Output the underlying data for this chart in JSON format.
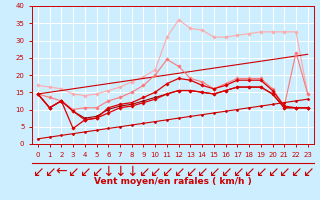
{
  "background_color": "#cceeff",
  "grid_color": "#ffffff",
  "xlabel": "Vent moyen/en rafales ( km/h )",
  "xlim": [
    -0.5,
    23.5
  ],
  "ylim": [
    0,
    40
  ],
  "yticks": [
    0,
    5,
    10,
    15,
    20,
    25,
    30,
    35,
    40
  ],
  "xticks": [
    0,
    1,
    2,
    3,
    4,
    5,
    6,
    7,
    8,
    9,
    10,
    11,
    12,
    13,
    14,
    15,
    16,
    17,
    18,
    19,
    20,
    21,
    22,
    23
  ],
  "series": [
    {
      "x": [
        0,
        1,
        2,
        3,
        4,
        5,
        6,
        7,
        8,
        9,
        10,
        11,
        12,
        13,
        14,
        15,
        16,
        17,
        18,
        19,
        20,
        21,
        22,
        23
      ],
      "y": [
        17.0,
        16.5,
        16.0,
        14.5,
        14.0,
        14.5,
        15.5,
        16.5,
        18.0,
        19.5,
        21.5,
        31.0,
        36.0,
        33.5,
        33.0,
        31.0,
        31.0,
        31.5,
        32.0,
        32.5,
        32.5,
        32.5,
        32.5,
        14.5
      ],
      "color": "#ffaaaa",
      "marker": "D",
      "markersize": 1.8,
      "linewidth": 0.8,
      "zorder": 2
    },
    {
      "x": [
        0,
        1,
        2,
        3,
        4,
        5,
        6,
        7,
        8,
        9,
        10,
        11,
        12,
        13,
        14,
        15,
        16,
        17,
        18,
        19,
        20,
        21,
        22,
        23
      ],
      "y": [
        14.5,
        13.5,
        12.5,
        10.0,
        10.5,
        10.5,
        12.5,
        13.5,
        15.0,
        17.0,
        20.0,
        24.5,
        22.5,
        19.0,
        18.0,
        16.0,
        17.5,
        19.0,
        19.0,
        19.0,
        16.0,
        11.0,
        26.5,
        14.5
      ],
      "color": "#ff7777",
      "marker": "D",
      "markersize": 1.8,
      "linewidth": 0.8,
      "zorder": 3
    },
    {
      "x": [
        0,
        1,
        2,
        3,
        4,
        5,
        6,
        7,
        8,
        9,
        10,
        11,
        12,
        13,
        14,
        15,
        16,
        17,
        18,
        19,
        20,
        21,
        22,
        23
      ],
      "y": [
        14.5,
        10.5,
        12.5,
        4.5,
        7.0,
        7.5,
        10.5,
        11.5,
        12.0,
        13.5,
        15.0,
        17.5,
        19.0,
        18.5,
        17.0,
        16.0,
        17.0,
        18.5,
        18.5,
        18.5,
        15.5,
        11.0,
        10.5,
        10.5
      ],
      "color": "#dd0000",
      "marker": "D",
      "markersize": 1.8,
      "linewidth": 0.9,
      "zorder": 4
    },
    {
      "x": [
        0,
        1,
        2,
        3,
        4,
        5,
        6,
        7,
        8,
        9,
        10,
        11,
        12,
        13,
        14,
        15,
        16,
        17,
        18,
        19,
        20,
        21,
        22,
        23
      ],
      "y": [
        14.5,
        10.5,
        12.5,
        9.5,
        7.0,
        7.5,
        9.0,
        10.5,
        11.0,
        12.0,
        13.0,
        14.5,
        15.5,
        15.5,
        15.0,
        14.5,
        15.5,
        16.5,
        16.5,
        16.5,
        14.5,
        10.5,
        10.5,
        10.5
      ],
      "color": "#dd0000",
      "marker": "D",
      "markersize": 1.8,
      "linewidth": 0.9,
      "zorder": 4
    },
    {
      "x": [
        0,
        1,
        2,
        3,
        4,
        5,
        6,
        7,
        8,
        9,
        10,
        11,
        12,
        13,
        14,
        15,
        16,
        17,
        18,
        19,
        20,
        21,
        22,
        23
      ],
      "y": [
        1.5,
        2.0,
        2.5,
        3.0,
        3.5,
        4.0,
        4.5,
        5.0,
        5.5,
        6.0,
        6.5,
        7.0,
        7.5,
        8.0,
        8.5,
        9.0,
        9.5,
        10.0,
        10.5,
        11.0,
        11.5,
        12.0,
        12.5,
        13.0
      ],
      "color": "#cc0000",
      "marker": "D",
      "markersize": 1.5,
      "linewidth": 0.8,
      "zorder": 3
    },
    {
      "x": [
        0,
        1,
        2,
        3,
        4,
        5,
        6,
        7,
        8,
        9,
        10,
        11,
        12,
        13,
        14,
        15,
        16,
        17,
        18,
        19,
        20,
        21,
        22,
        23
      ],
      "y": [
        14.5,
        15.0,
        15.5,
        16.0,
        16.5,
        17.0,
        17.5,
        18.0,
        18.5,
        19.0,
        19.5,
        20.0,
        20.5,
        21.0,
        21.5,
        22.0,
        22.5,
        23.0,
        23.5,
        24.0,
        24.5,
        25.0,
        25.5,
        26.0
      ],
      "color": "#cc0000",
      "marker": null,
      "markersize": 0,
      "linewidth": 0.8,
      "zorder": 2
    },
    {
      "x": [
        0,
        1,
        2,
        3,
        4,
        5,
        6,
        7,
        8,
        9,
        10,
        11,
        12,
        13,
        14,
        15,
        16,
        17,
        18,
        19,
        20,
        21,
        22,
        23
      ],
      "y": [
        14.5,
        10.5,
        12.5,
        9.5,
        7.5,
        8.0,
        10.0,
        11.0,
        11.5,
        12.5,
        13.5,
        14.5,
        15.5,
        15.5,
        15.0,
        14.5,
        15.5,
        16.5,
        16.5,
        16.5,
        14.5,
        10.5,
        10.5,
        10.5
      ],
      "color": "#990000",
      "marker": "D",
      "markersize": 1.5,
      "linewidth": 0.8,
      "zorder": 3
    }
  ],
  "arrow_color": "#cc0000",
  "xlabel_color": "#cc0000",
  "xlabel_fontsize": 6.5,
  "tick_fontsize": 5,
  "tick_color": "#cc0000",
  "spine_color": "#cc0000",
  "directions": [
    "↙",
    "↙",
    "←",
    "↙",
    "↙",
    "↙",
    "↓",
    "↓",
    "↓",
    "↙",
    "↙",
    "↙",
    "↙",
    "↙",
    "↙",
    "↙",
    "↙",
    "↙",
    "↙",
    "↙",
    "↙",
    "↙",
    "↙",
    "↙"
  ]
}
